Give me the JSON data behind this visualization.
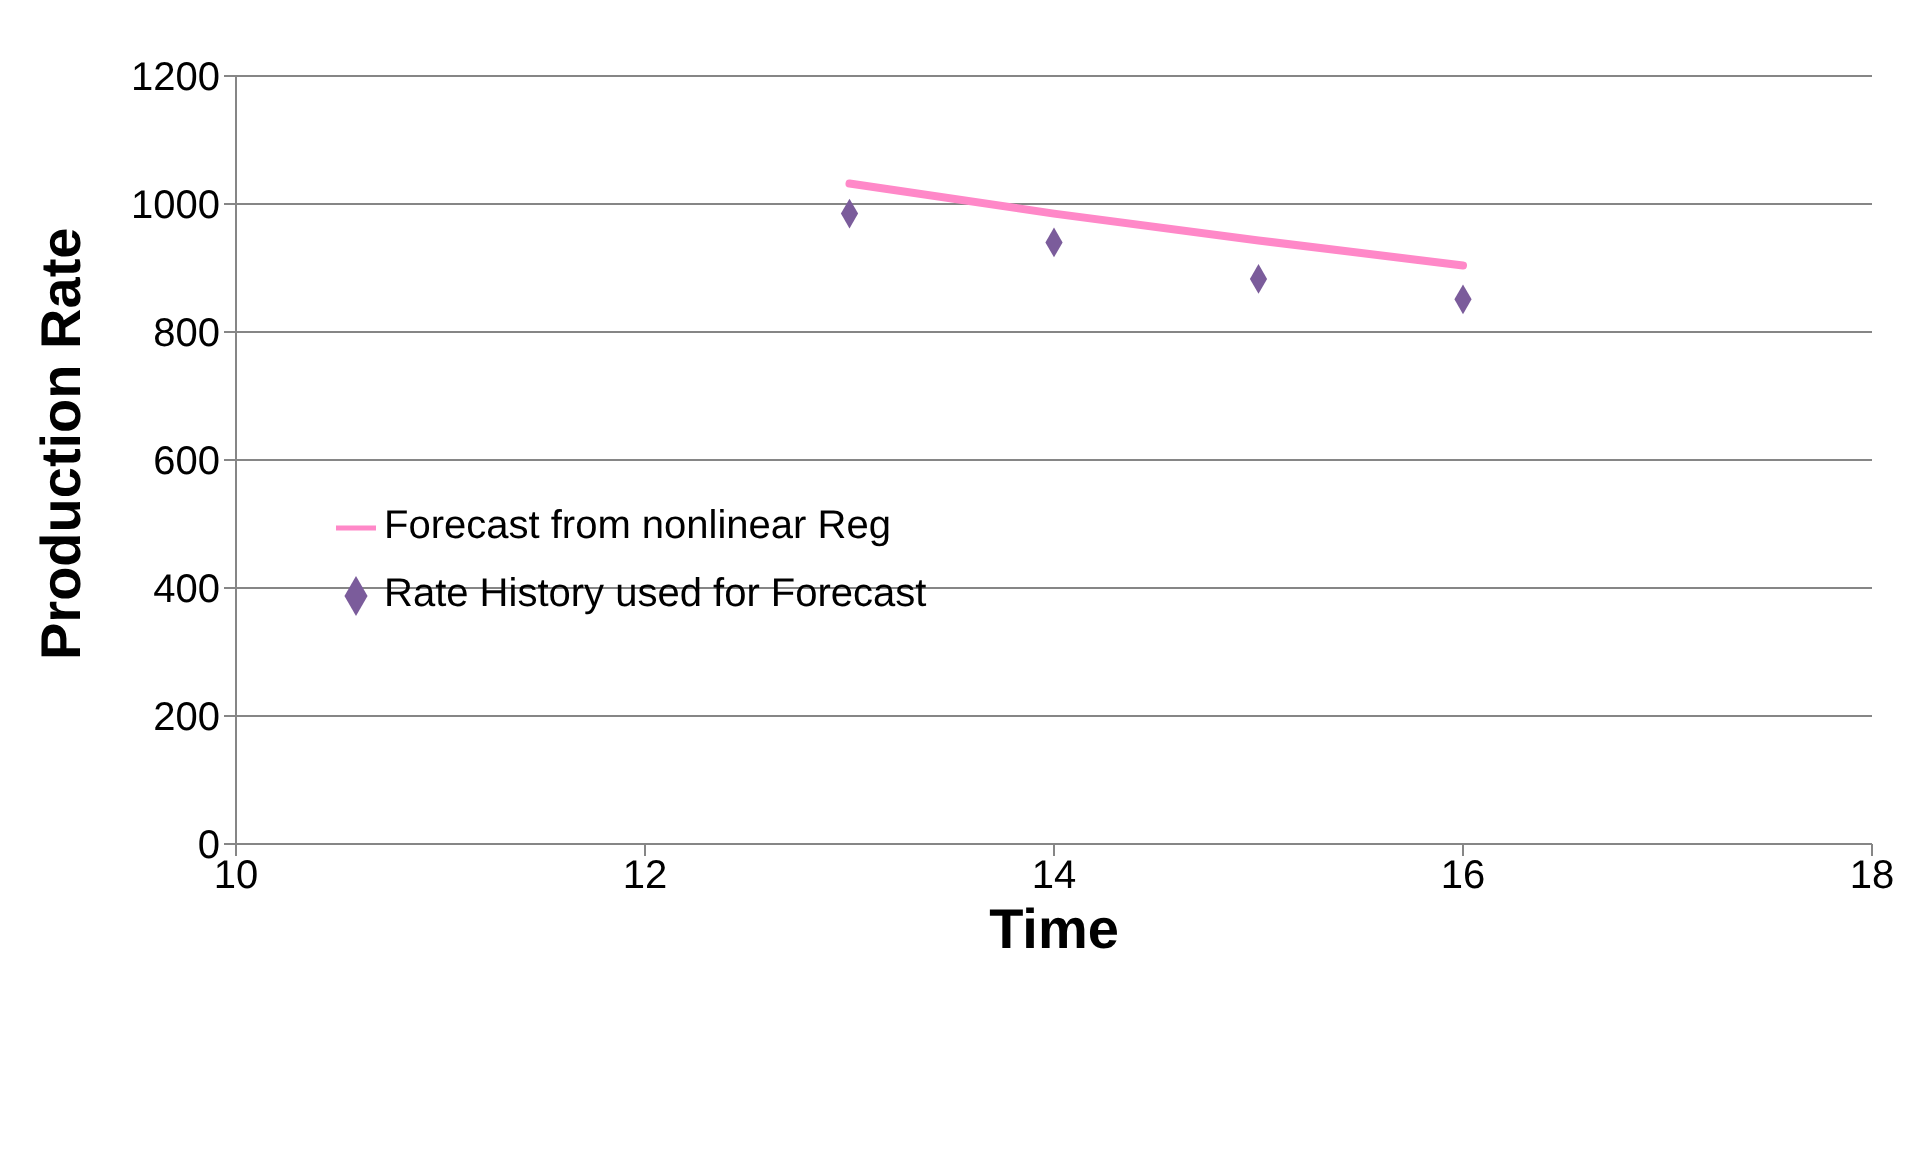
{
  "chart_data": {
    "type": "line",
    "xlabel": "Time",
    "ylabel": "Production Rate",
    "xlim": [
      10,
      18
    ],
    "xticks": [
      10,
      12,
      14,
      16,
      18
    ],
    "ylim": [
      0,
      1200
    ],
    "yticks": [
      0,
      200,
      400,
      600,
      800,
      1000,
      1200
    ],
    "grid": "y",
    "legend": "left",
    "series": [
      {
        "name": "Forecast from nonlinear Reg",
        "color": "#ff88c8",
        "marker": "none",
        "x": [
          13,
          14,
          15,
          16
        ],
        "values": [
          1032,
          985,
          943,
          904
        ]
      },
      {
        "name": "Rate History used for Forecast",
        "type": "scatter",
        "color": "#7b5c9b",
        "marker": "diamond",
        "x": [
          13,
          14,
          15,
          16
        ],
        "values": [
          985,
          940,
          883,
          851
        ]
      }
    ]
  }
}
